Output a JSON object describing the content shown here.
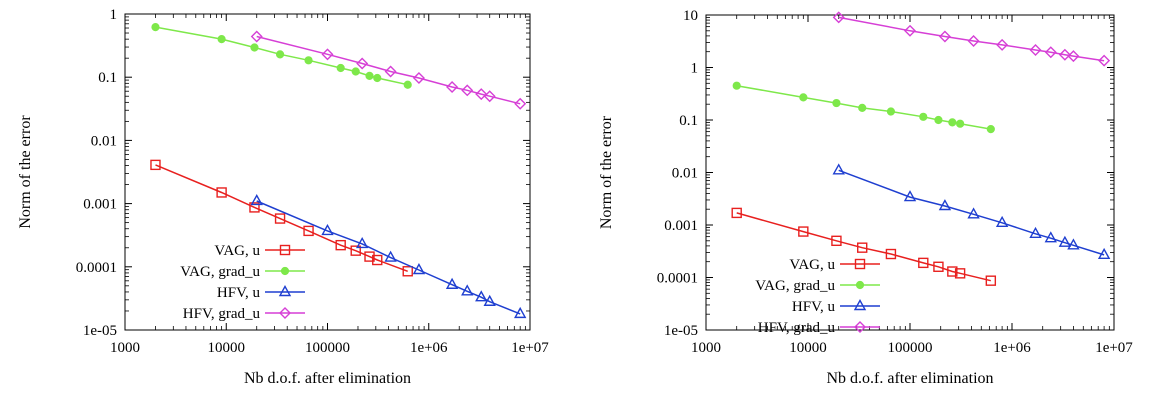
{
  "chart_data": [
    {
      "type": "line",
      "xscale": "log",
      "yscale": "log",
      "xlim": [
        1000,
        10000000
      ],
      "ylim": [
        1e-05,
        1
      ],
      "xlabel": "Nb d.o.f. after elimination",
      "ylabel": "Norm of the error",
      "xticks": [
        "1000",
        "10000",
        "100000",
        "1e+06",
        "1e+07"
      ],
      "yticks": [
        "1e-05",
        "0.0001",
        "0.001",
        "0.01",
        "0.1",
        "1"
      ],
      "legend_position": "bottom-left",
      "series": [
        {
          "name": "VAG, u",
          "color": "#e8201f",
          "marker": "square",
          "x": [
            2000,
            9000,
            19000,
            34000,
            65000,
            135000,
            190000,
            260000,
            310000,
            620000
          ],
          "y": [
            0.0041,
            0.0015,
            0.00087,
            0.00058,
            0.00037,
            0.00022,
            0.00018,
            0.000145,
            0.000128,
            8.5e-05
          ]
        },
        {
          "name": "VAG, grad_u",
          "color": "#7ee84a",
          "marker": "circle",
          "x": [
            2000,
            9000,
            19000,
            34000,
            65000,
            135000,
            190000,
            260000,
            310000,
            620000
          ],
          "y": [
            0.62,
            0.4,
            0.295,
            0.23,
            0.185,
            0.14,
            0.123,
            0.105,
            0.097,
            0.076
          ]
        },
        {
          "name": "HFV, u",
          "color": "#1f3fd0",
          "marker": "triangle",
          "x": [
            20000,
            100000,
            220000,
            420000,
            800000,
            1700000,
            2400000,
            3300000,
            4000000,
            8000000
          ],
          "y": [
            0.0011,
            0.00037,
            0.00023,
            0.00014,
            8.9e-05,
            5.2e-05,
            4.1e-05,
            3.3e-05,
            2.8e-05,
            1.8e-05
          ]
        },
        {
          "name": "HFV, grad_u",
          "color": "#d63fd6",
          "marker": "diamond",
          "x": [
            20000,
            100000,
            220000,
            420000,
            800000,
            1700000,
            2400000,
            3300000,
            4000000,
            8000000
          ],
          "y": [
            0.44,
            0.23,
            0.165,
            0.123,
            0.097,
            0.07,
            0.062,
            0.054,
            0.05,
            0.038
          ]
        }
      ]
    },
    {
      "type": "line",
      "xscale": "log",
      "yscale": "log",
      "xlim": [
        1000,
        10000000
      ],
      "ylim": [
        1e-05,
        10
      ],
      "xlabel": "Nb d.o.f. after elimination",
      "ylabel": "Norm of the error",
      "xticks": [
        "1000",
        "10000",
        "100000",
        "1e+06",
        "1e+07"
      ],
      "yticks": [
        "1e-05",
        "0.0001",
        "0.001",
        "0.01",
        "0.1",
        "1",
        "10"
      ],
      "legend_position": "bottom-left",
      "series": [
        {
          "name": "VAG, u",
          "color": "#e8201f",
          "marker": "square",
          "x": [
            2000,
            9000,
            19000,
            34000,
            65000,
            135000,
            190000,
            260000,
            310000,
            620000
          ],
          "y": [
            0.0017,
            0.00075,
            0.0005,
            0.00037,
            0.00028,
            0.00019,
            0.00016,
            0.00013,
            0.00012,
            8.7e-05
          ]
        },
        {
          "name": "VAG, grad_u",
          "color": "#7ee84a",
          "marker": "circle",
          "x": [
            2000,
            9000,
            19000,
            34000,
            65000,
            135000,
            190000,
            260000,
            310000,
            620000
          ],
          "y": [
            0.45,
            0.27,
            0.21,
            0.17,
            0.145,
            0.115,
            0.1,
            0.09,
            0.085,
            0.067
          ]
        },
        {
          "name": "HFV, u",
          "color": "#1f3fd0",
          "marker": "triangle",
          "x": [
            20000,
            100000,
            220000,
            420000,
            800000,
            1700000,
            2400000,
            3300000,
            4000000,
            8000000
          ],
          "y": [
            0.011,
            0.0034,
            0.0023,
            0.0016,
            0.0011,
            0.00068,
            0.00056,
            0.00046,
            0.00041,
            0.00027
          ]
        },
        {
          "name": "HFV, grad_u",
          "color": "#d63fd6",
          "marker": "diamond",
          "x": [
            20000,
            100000,
            220000,
            420000,
            800000,
            1700000,
            2400000,
            3300000,
            4000000,
            8000000
          ],
          "y": [
            9.0,
            5.0,
            3.9,
            3.2,
            2.7,
            2.15,
            1.95,
            1.75,
            1.65,
            1.35
          ]
        }
      ]
    }
  ]
}
